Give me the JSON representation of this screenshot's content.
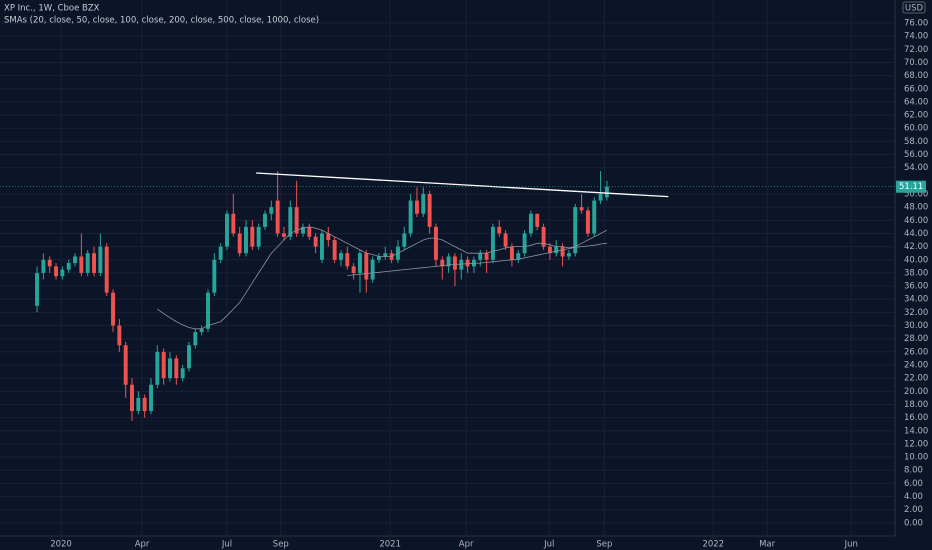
{
  "chart_data": {
    "type": "candlestick",
    "title": "XP Inc., 1W, Cboe BZX",
    "subtitle": "SMAs (20, close, 50, close, 100, close, 200, close, 500, close, 1000, close)",
    "currency": "USD",
    "x": [
      0,
      1,
      2,
      3,
      4,
      5,
      6,
      7,
      8,
      9,
      10,
      11,
      12,
      13,
      14,
      15,
      16,
      17,
      18,
      19,
      20,
      21,
      22,
      23,
      24,
      25,
      26,
      27,
      28,
      29,
      30,
      31,
      32,
      33,
      34,
      35,
      36,
      37,
      38,
      39,
      40,
      41,
      42,
      43,
      44,
      45,
      46,
      47,
      48,
      49,
      50,
      51,
      52,
      53,
      54,
      55,
      56,
      57,
      58,
      59,
      60,
      61,
      62,
      63,
      64,
      65,
      66,
      67,
      68,
      69,
      70,
      71,
      72,
      73,
      74,
      75,
      76,
      77,
      78,
      79,
      80,
      81,
      82,
      83,
      84,
      85,
      86,
      87,
      88,
      89,
      90
    ],
    "open": [
      33,
      38,
      40,
      39,
      37.5,
      38.5,
      39.5,
      40.5,
      38,
      41,
      38,
      42,
      35,
      30,
      27,
      21,
      17,
      19,
      17,
      21,
      26,
      22,
      25,
      22,
      23.5,
      27,
      29,
      29.5,
      35,
      40,
      42,
      47,
      44,
      41,
      45,
      42,
      45,
      47,
      49,
      44,
      43.5,
      48,
      44,
      45,
      43.5,
      40,
      44,
      43,
      40,
      41,
      39,
      38,
      41,
      37,
      40,
      40.5,
      41,
      40,
      42,
      44,
      49,
      47,
      50,
      45,
      40,
      39,
      40.5,
      38.5,
      40,
      39,
      40,
      41,
      40,
      45,
      44,
      42,
      40,
      41,
      44,
      47,
      45,
      42,
      41,
      42,
      40.5,
      41,
      48,
      47.5,
      44,
      49,
      49.5
    ],
    "high": [
      39,
      41,
      40.5,
      39.5,
      39,
      40,
      41,
      44,
      41.5,
      42,
      44,
      42.5,
      35.5,
      31,
      27.5,
      22,
      20,
      19.5,
      22,
      27,
      26.5,
      26,
      25.5,
      24,
      27.5,
      29.5,
      30,
      35.5,
      41,
      42.5,
      47.5,
      50,
      45,
      46,
      46,
      45.5,
      47.5,
      49,
      53.5,
      45,
      49,
      52,
      45.5,
      45.5,
      44,
      44.5,
      45,
      43.5,
      41.5,
      42,
      39.5,
      41.5,
      41.5,
      40.5,
      41,
      42,
      41.5,
      43,
      45,
      50,
      51,
      51,
      50.5,
      45.5,
      40.5,
      41,
      41,
      41,
      40.5,
      40.5,
      41.5,
      41.5,
      45.5,
      46,
      44.5,
      42.5,
      41.5,
      44.5,
      47.5,
      47,
      45.5,
      42.5,
      43,
      42.5,
      41.5,
      48.5,
      50,
      48,
      49.5,
      53.5,
      52
    ],
    "low": [
      32,
      37,
      38,
      37,
      37,
      38,
      39,
      37.5,
      37.5,
      37.5,
      37.5,
      34.5,
      29,
      26,
      19,
      15.5,
      16.5,
      16,
      16.5,
      20.5,
      21,
      21.5,
      21,
      21.5,
      23,
      26.5,
      28.5,
      29,
      34.5,
      39.5,
      41.5,
      43.5,
      40.5,
      40.5,
      41.5,
      41.5,
      44.5,
      46,
      43.5,
      43,
      43,
      43.5,
      43.5,
      43,
      41,
      39.5,
      42,
      39.5,
      39,
      38.5,
      37,
      35,
      35,
      36.5,
      39.5,
      40,
      39.5,
      39.5,
      41.5,
      43.5,
      46.5,
      46.5,
      44,
      39,
      37,
      38,
      36,
      37,
      38,
      38,
      39,
      38,
      39.5,
      43.5,
      41.5,
      39,
      39.5,
      40.5,
      43.5,
      44.5,
      41.5,
      40,
      40.5,
      39,
      40,
      40.5,
      47,
      43.5,
      43.5,
      48.5,
      49
    ],
    "close": [
      38,
      40,
      39,
      37.5,
      38.5,
      39.5,
      40.5,
      38,
      41,
      38,
      42,
      35,
      30,
      27,
      21,
      17,
      19,
      17,
      21,
      26,
      22,
      25,
      22,
      23.5,
      27,
      29,
      29.5,
      35,
      40,
      42,
      47,
      44,
      41,
      45,
      42,
      45,
      47,
      48,
      44,
      43.5,
      48,
      44,
      45,
      43.5,
      42,
      44,
      43,
      40,
      41,
      39,
      38,
      41,
      37,
      40,
      40.5,
      41,
      40,
      42,
      44,
      49,
      47,
      50,
      45,
      40,
      39,
      40.5,
      38.5,
      40,
      39,
      40,
      41,
      40,
      45,
      44,
      42,
      40,
      41,
      44,
      47,
      45,
      42,
      41,
      42,
      40.5,
      41,
      48,
      47.5,
      44,
      49,
      50,
      51.11
    ],
    "up_color": "#26a69a",
    "down_color": "#ef5350",
    "series": [
      {
        "color": "#8f949e",
        "values": [
          null,
          null,
          null,
          null,
          null,
          null,
          null,
          null,
          null,
          null,
          null,
          null,
          null,
          null,
          null,
          null,
          null,
          null,
          null,
          32.5,
          31.8,
          31.2,
          30.6,
          30.1,
          29.7,
          29.5,
          29.5,
          30,
          30.3,
          30.6,
          31.5,
          32.5,
          33.5,
          35,
          36.5,
          38,
          39.5,
          41,
          42,
          43,
          44,
          44.5,
          44.8,
          45,
          44.8,
          44.5,
          44,
          43.5,
          43,
          42.5,
          42,
          41.5,
          41,
          40.8,
          40.5,
          40.5,
          40.5,
          41,
          41.5,
          42,
          42.5,
          43,
          43.3,
          43.3,
          43,
          42.5,
          42,
          41.5,
          41,
          41,
          41,
          41,
          41.3,
          41.5,
          41.8,
          42,
          42,
          42,
          42.2,
          42.5,
          42.5,
          42.3,
          42,
          42,
          41.8,
          42,
          42.5,
          43,
          43.5,
          44,
          44.5
        ]
      },
      {
        "color": "#8f949e",
        "values": [
          null,
          null,
          null,
          null,
          null,
          null,
          null,
          null,
          null,
          null,
          null,
          null,
          null,
          null,
          null,
          null,
          null,
          null,
          null,
          null,
          null,
          null,
          null,
          null,
          null,
          null,
          null,
          null,
          null,
          null,
          null,
          null,
          null,
          null,
          null,
          null,
          null,
          null,
          null,
          null,
          null,
          null,
          null,
          null,
          null,
          null,
          null,
          null,
          null,
          37.6,
          37.7,
          37.8,
          37.9,
          38,
          38.1,
          38.2,
          38.3,
          38.4,
          38.5,
          38.6,
          38.7,
          38.8,
          38.9,
          39,
          39.1,
          39.2,
          39.3,
          39.35,
          39.4,
          39.45,
          39.5,
          39.6,
          39.7,
          39.8,
          39.9,
          40,
          40.1,
          40.3,
          40.5,
          40.7,
          40.9,
          41.1,
          41.3,
          41.5,
          41.7,
          41.9,
          42,
          42.1,
          42.2,
          42.4,
          42.5
        ]
      }
    ],
    "trendline": {
      "x": [
        34.6,
        99.7
      ],
      "y": [
        53.2,
        49.6
      ],
      "color": "#ffffff"
    },
    "xlim": [
      -5.85,
      135.5
    ],
    "xticks": [
      {
        "value": 3.79,
        "label": "2020"
      },
      {
        "value": 16.59,
        "label": "Apr"
      },
      {
        "value": 30.0,
        "label": "Jul"
      },
      {
        "value": 38.5,
        "label": "Sep"
      },
      {
        "value": 55.77,
        "label": "2021"
      },
      {
        "value": 67.77,
        "label": "Apr"
      },
      {
        "value": 80.9,
        "label": "Jul"
      },
      {
        "value": 89.6,
        "label": "Sep"
      },
      {
        "value": 106.8,
        "label": "2022"
      },
      {
        "value": 115.3,
        "label": "Mar"
      },
      {
        "value": 128.6,
        "label": "Jun"
      }
    ],
    "ylim": [
      -2,
      79.5
    ],
    "yticks": [
      {
        "value": 0,
        "label": "0.00"
      },
      {
        "value": 2,
        "label": "2.00"
      },
      {
        "value": 4,
        "label": "4.00"
      },
      {
        "value": 6,
        "label": "6.00"
      },
      {
        "value": 8,
        "label": "8.00"
      },
      {
        "value": 10,
        "label": "10.00"
      },
      {
        "value": 12,
        "label": "12.00"
      },
      {
        "value": 14,
        "label": "14.00"
      },
      {
        "value": 16,
        "label": "16.00"
      },
      {
        "value": 18,
        "label": "18.00"
      },
      {
        "value": 20,
        "label": "20.00"
      },
      {
        "value": 22,
        "label": "22.00"
      },
      {
        "value": 24,
        "label": "24.00"
      },
      {
        "value": 26,
        "label": "26.00"
      },
      {
        "value": 28,
        "label": "28.00"
      },
      {
        "value": 30,
        "label": "30.00"
      },
      {
        "value": 32,
        "label": "32.00"
      },
      {
        "value": 34,
        "label": "34.00"
      },
      {
        "value": 36,
        "label": "36.00"
      },
      {
        "value": 38,
        "label": "38.00"
      },
      {
        "value": 40,
        "label": "40.00"
      },
      {
        "value": 42,
        "label": "42.00"
      },
      {
        "value": 44,
        "label": "44.00"
      },
      {
        "value": 46,
        "label": "46.00"
      },
      {
        "value": 48,
        "label": "48.00"
      },
      {
        "value": 50,
        "label": "50.00"
      },
      {
        "value": 54,
        "label": "54.00"
      },
      {
        "value": 56,
        "label": "56.00"
      },
      {
        "value": 58,
        "label": "58.00"
      },
      {
        "value": 60,
        "label": "60.00"
      },
      {
        "value": 62,
        "label": "62.00"
      },
      {
        "value": 64,
        "label": "64.00"
      },
      {
        "value": 66,
        "label": "66.00"
      },
      {
        "value": 68,
        "label": "68.00"
      },
      {
        "value": 70,
        "label": "70.00"
      },
      {
        "value": 72,
        "label": "72.00"
      },
      {
        "value": 74,
        "label": "74.00"
      },
      {
        "value": 76,
        "label": "76.00"
      }
    ],
    "grid": true
  }
}
